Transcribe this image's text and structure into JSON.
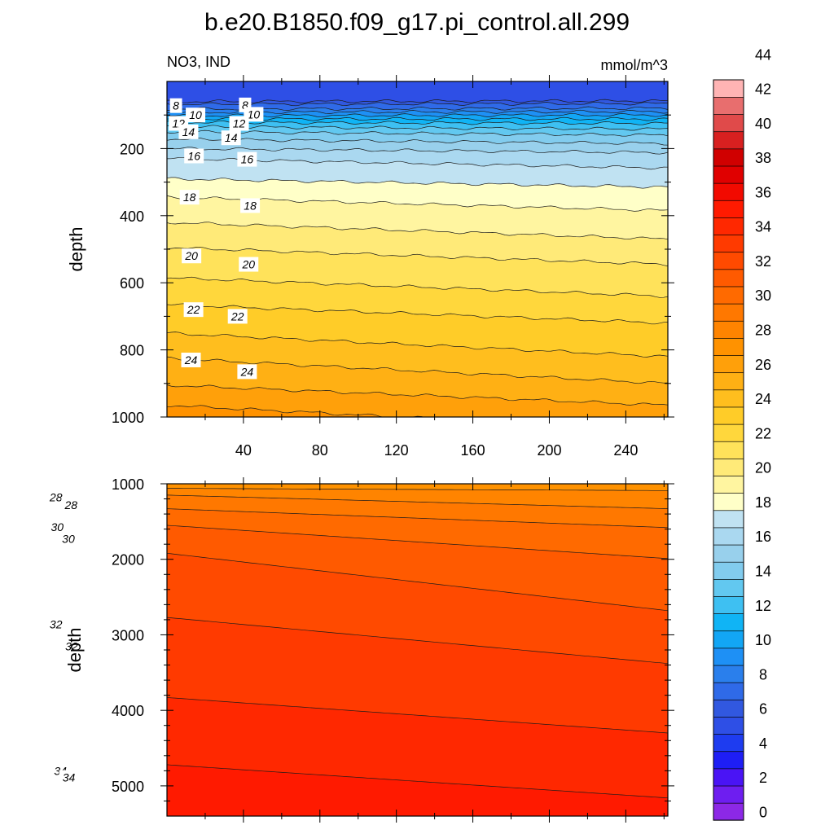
{
  "chart_data": {
    "type": "heatmap",
    "title": "b.e20.B1850.f09_g17.pi_control.all.299",
    "variable": "NO3, IND",
    "units": "mmol/m^3",
    "colorbar": {
      "levels": [
        0,
        2,
        4,
        6,
        8,
        10,
        12,
        14,
        16,
        18,
        20,
        22,
        24,
        26,
        28,
        30,
        32,
        34,
        36,
        38,
        40,
        42,
        44
      ],
      "labels": [
        "0",
        "2",
        "4",
        "6",
        "8",
        "10",
        "12",
        "14",
        "16",
        "18",
        "20",
        "22",
        "24",
        "26",
        "28",
        "30",
        "32",
        "34",
        "36",
        "38",
        "40",
        "42",
        "44"
      ],
      "colors": [
        "#8C28E6",
        "#6E1EF0",
        "#4A14F5",
        "#1E1EF5",
        "#1E3CF0",
        "#2E4FE6",
        "#3158E0",
        "#2F6AE8",
        "#2A7FEC",
        "#1E90F5",
        "#12A6F5",
        "#10B4F5",
        "#3EC0F2",
        "#62C8F0",
        "#82CCEE",
        "#98D0EC",
        "#AAD8F0",
        "#C0E2F2",
        "#FFFFC8",
        "#FFF5A0",
        "#FFEA78",
        "#FFE25A",
        "#FFD73C",
        "#FFCC28",
        "#FFBE1E",
        "#FFB014",
        "#FFA00A",
        "#FF9200",
        "#FF8400",
        "#FF7800",
        "#FF6A00",
        "#FF5A00",
        "#FF4A00",
        "#FF3A00",
        "#FF2800",
        "#FF1A00",
        "#F20A00",
        "#E00000",
        "#D00000",
        "#D82020",
        "#E04A4A",
        "#E86E6E",
        "#FFB4B4"
      ]
    },
    "top_panel": {
      "ylabel": "depth",
      "ylim": [
        0,
        1000
      ],
      "yticks": [
        "200",
        "400",
        "600",
        "800",
        "1000"
      ],
      "xlim": [
        0,
        262
      ],
      "xticks": [
        "40",
        "80",
        "120",
        "160",
        "200",
        "240"
      ],
      "contour_labels": [
        {
          "text": "8",
          "x": 18,
          "depth": 72
        },
        {
          "text": "8",
          "x": 156,
          "depth": 70
        },
        {
          "text": "10",
          "x": 57,
          "depth": 100
        },
        {
          "text": "10",
          "x": 173,
          "depth": 98
        },
        {
          "text": "12",
          "x": 23,
          "depth": 125
        },
        {
          "text": "12",
          "x": 144,
          "depth": 125
        },
        {
          "text": "14",
          "x": 43,
          "depth": 150
        },
        {
          "text": "14",
          "x": 128,
          "depth": 168
        },
        {
          "text": "16",
          "x": 54,
          "depth": 222
        },
        {
          "text": "16",
          "x": 160,
          "depth": 232
        },
        {
          "text": "18",
          "x": 45,
          "depth": 345
        },
        {
          "text": "18",
          "x": 166,
          "depth": 370
        },
        {
          "text": "20",
          "x": 49,
          "depth": 520
        },
        {
          "text": "20",
          "x": 163,
          "depth": 545
        },
        {
          "text": "22",
          "x": 53,
          "depth": 680
        },
        {
          "text": "22",
          "x": 141,
          "depth": 700
        },
        {
          "text": "24",
          "x": 48,
          "depth": 830
        },
        {
          "text": "24",
          "x": 160,
          "depth": 865
        }
      ]
    },
    "bottom_panel": {
      "ylabel": "depth",
      "ylim": [
        1000,
        5400
      ],
      "yticks": [
        "1000",
        "2000",
        "3000",
        "4000",
        "5000"
      ],
      "xlim": [
        0,
        262
      ],
      "contour_labels": [
        {
          "text": "28",
          "x": 25,
          "depth": 1180
        },
        {
          "text": "28",
          "x": 158,
          "depth": 1280
        },
        {
          "text": "30",
          "x": 36,
          "depth": 1570
        },
        {
          "text": "30",
          "x": 134,
          "depth": 1730
        },
        {
          "text": "32",
          "x": 25,
          "depth": 2860
        },
        {
          "text": "32",
          "x": 162,
          "depth": 3150
        },
        {
          "text": "34",
          "x": 64,
          "depth": 4800
        },
        {
          "text": "34",
          "x": 138,
          "depth": 4890
        }
      ]
    }
  }
}
